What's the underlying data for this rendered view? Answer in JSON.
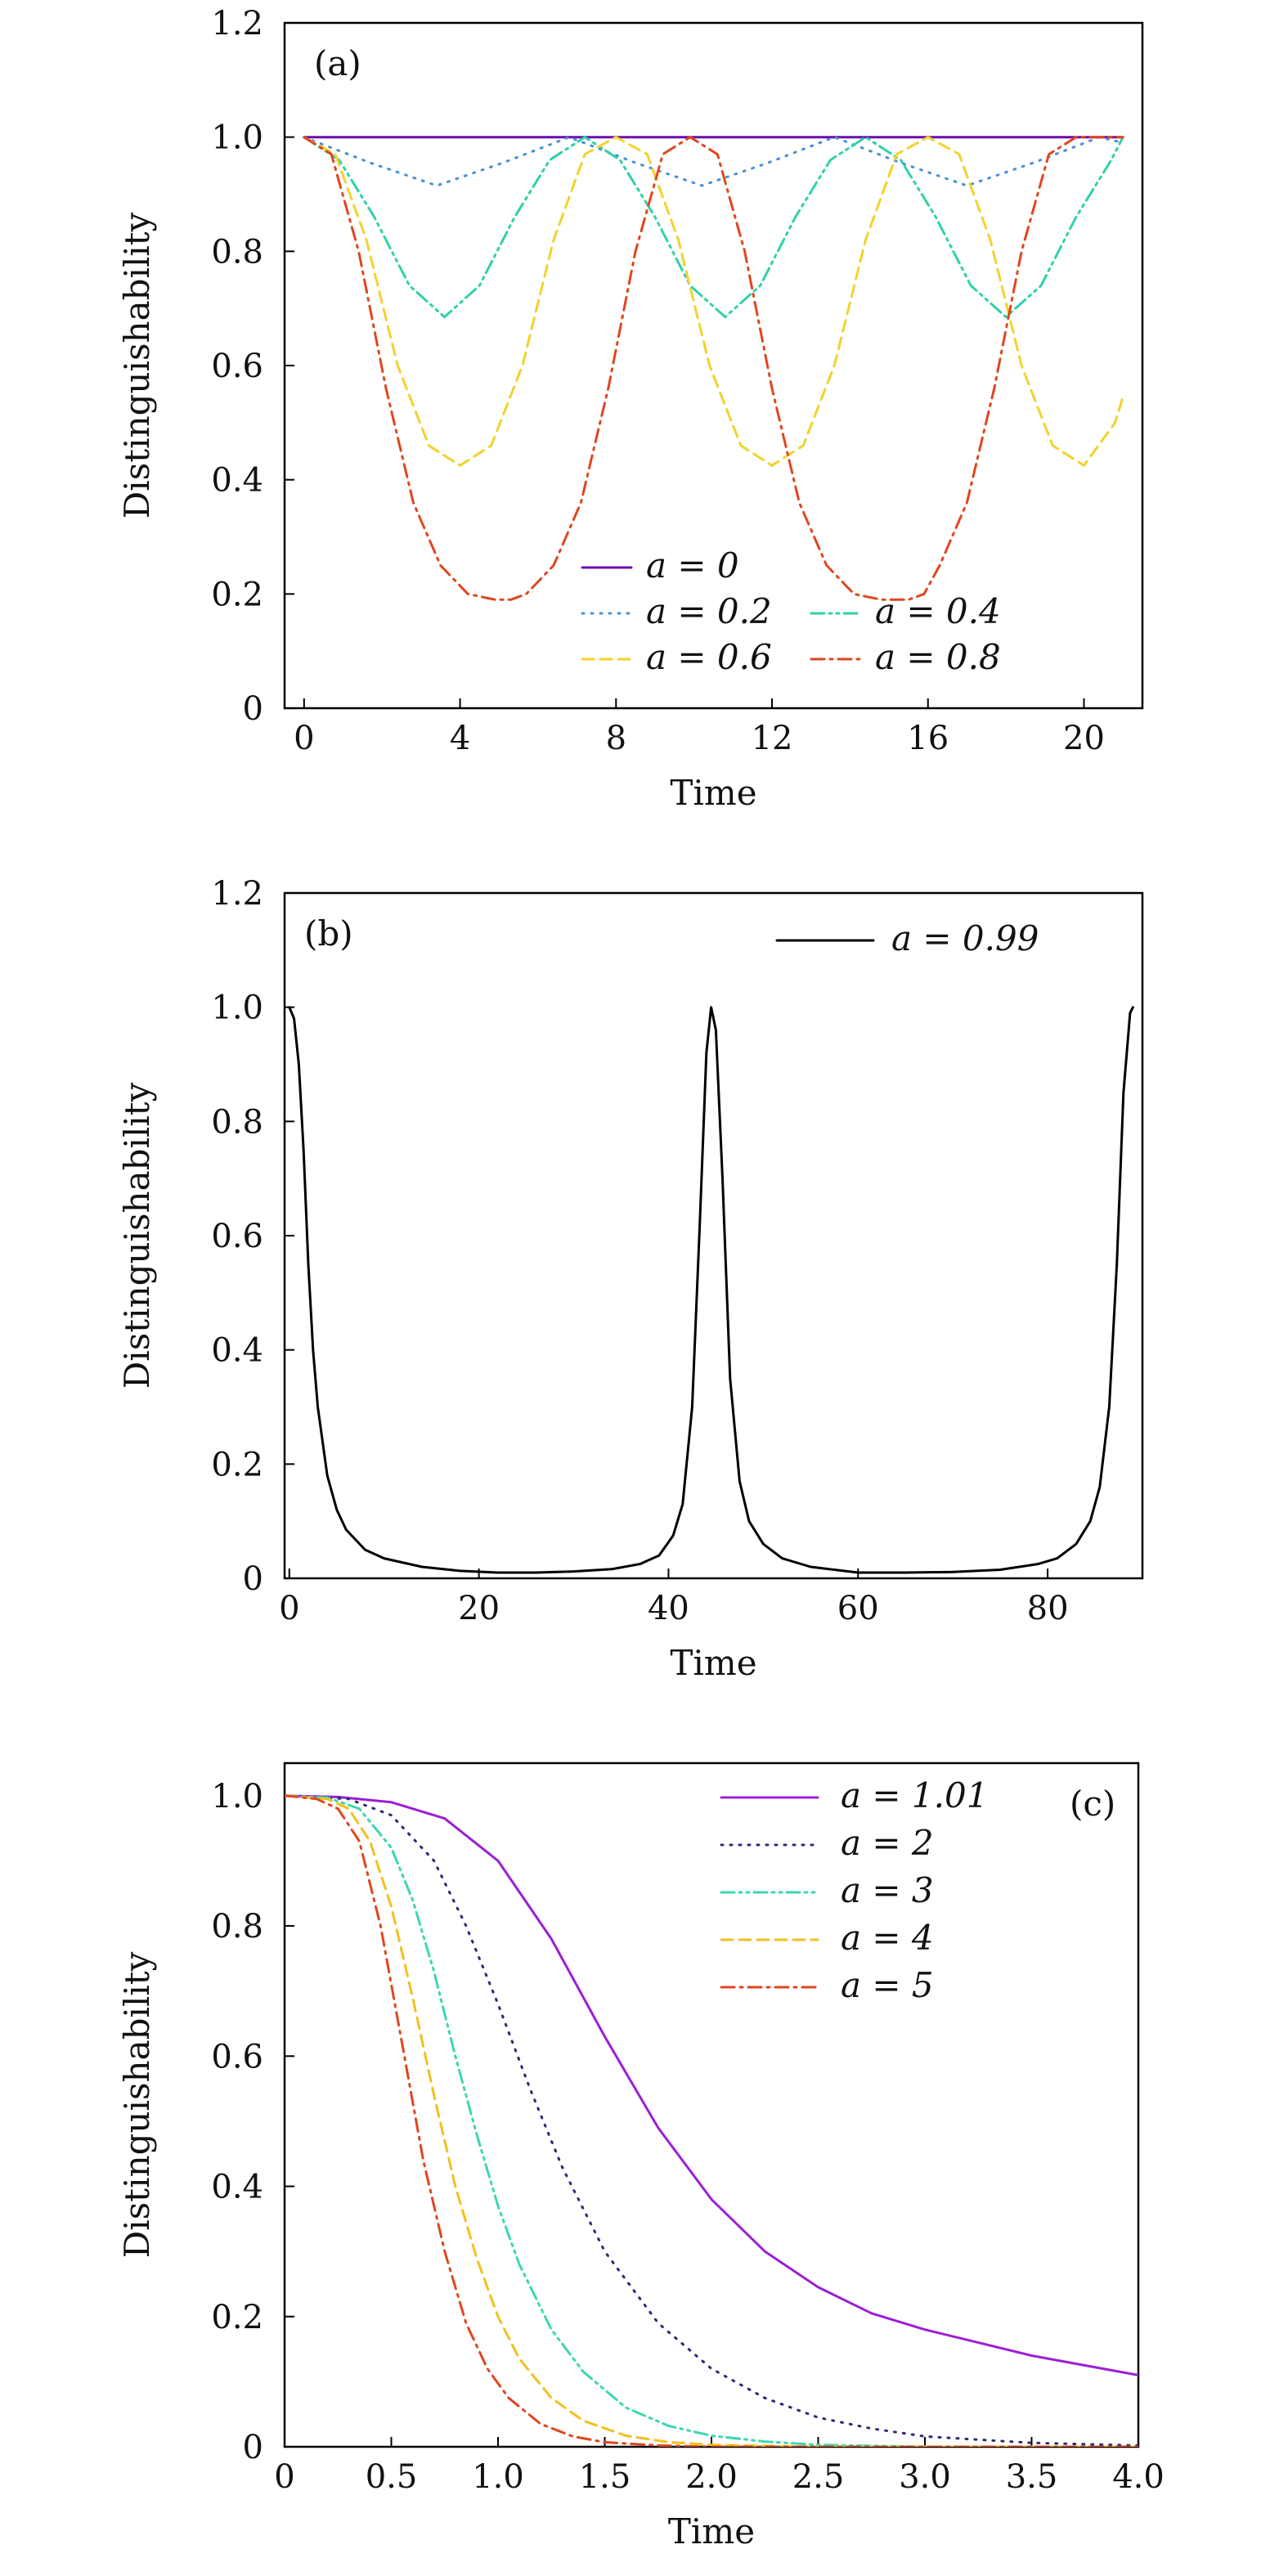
{
  "chart_data": [
    {
      "type": "line",
      "panel_tag": "(a)",
      "xlabel": "Time",
      "ylabel": "Distinguishability",
      "xlim": [
        -0.5,
        21.5
      ],
      "ylim": [
        0,
        1.2
      ],
      "xticks": [
        0,
        4,
        8,
        12,
        16,
        20
      ],
      "yticks": [
        0,
        0.2,
        0.4,
        0.6,
        0.8,
        1.0,
        1.2
      ],
      "ytick_labels": [
        "0",
        "0.2",
        "0.4",
        "0.6",
        "0.8",
        "1.0",
        "1.2"
      ],
      "legend_position": "bottom-center",
      "series": [
        {
          "name": "a = 0",
          "color": "#6a0dad",
          "dash": "solid",
          "x": [
            0,
            21
          ],
          "y": [
            1.0,
            1.0
          ]
        },
        {
          "name": "a = 0.2",
          "color": "#4a8fd6",
          "dash": "dotted",
          "x": [
            0,
            1.7,
            3.4,
            5.1,
            6.8,
            8.5,
            10.2,
            11.9,
            13.6,
            15.3,
            17.0,
            18.7,
            20.4,
            21
          ],
          "y": [
            1.0,
            0.955,
            0.915,
            0.955,
            1.0,
            0.955,
            0.915,
            0.955,
            1.0,
            0.955,
            0.915,
            0.955,
            1.0,
            0.99
          ]
        },
        {
          "name": "a = 0.4",
          "color": "#2fd1a8",
          "dash": "dashdotdot",
          "x": [
            0,
            0.9,
            1.8,
            2.7,
            3.6,
            4.5,
            5.4,
            6.3,
            7.2,
            8.1,
            9.0,
            9.9,
            10.8,
            11.7,
            12.6,
            13.5,
            14.4,
            15.3,
            16.2,
            17.1,
            18.0,
            18.9,
            19.8,
            20.7,
            21
          ],
          "y": [
            1.0,
            0.96,
            0.86,
            0.74,
            0.685,
            0.74,
            0.86,
            0.96,
            1.0,
            0.96,
            0.86,
            0.74,
            0.685,
            0.74,
            0.86,
            0.96,
            1.0,
            0.96,
            0.86,
            0.74,
            0.685,
            0.74,
            0.86,
            0.96,
            1.0
          ]
        },
        {
          "name": "a = 0.6",
          "color": "#f2d22e",
          "dash": "dashed",
          "x": [
            0,
            0.8,
            1.6,
            2.4,
            3.2,
            4.0,
            4.8,
            5.6,
            6.4,
            7.2,
            8.0,
            8.8,
            9.6,
            10.4,
            11.2,
            12.0,
            12.8,
            13.6,
            14.4,
            15.2,
            16.0,
            16.8,
            17.6,
            18.4,
            19.2,
            20.0,
            20.8,
            21
          ],
          "y": [
            1.0,
            0.97,
            0.82,
            0.6,
            0.46,
            0.425,
            0.46,
            0.6,
            0.82,
            0.97,
            1.0,
            0.97,
            0.82,
            0.6,
            0.46,
            0.425,
            0.46,
            0.6,
            0.82,
            0.97,
            1.0,
            0.97,
            0.82,
            0.6,
            0.46,
            0.425,
            0.5,
            0.545
          ]
        },
        {
          "name": "a = 0.8",
          "color": "#e0461e",
          "dash": "dashdot",
          "x": [
            0,
            0.7,
            1.4,
            2.1,
            2.8,
            3.5,
            4.2,
            4.9,
            5.3,
            5.7,
            6.4,
            7.1,
            7.8,
            8.5,
            9.2,
            9.9,
            10.6,
            11.3,
            12.0,
            12.7,
            13.4,
            14.1,
            14.8,
            15.5,
            15.9,
            16.3,
            17.0,
            17.7,
            18.4,
            19.1,
            19.8,
            20.5,
            21
          ],
          "y": [
            1.0,
            0.97,
            0.8,
            0.56,
            0.36,
            0.25,
            0.2,
            0.19,
            0.19,
            0.2,
            0.25,
            0.36,
            0.56,
            0.8,
            0.97,
            1.0,
            0.97,
            0.8,
            0.56,
            0.36,
            0.25,
            0.2,
            0.19,
            0.19,
            0.2,
            0.25,
            0.36,
            0.56,
            0.8,
            0.97,
            1.0,
            1.0,
            1.0
          ]
        }
      ]
    },
    {
      "type": "line",
      "panel_tag": "(b)",
      "xlabel": "Time",
      "ylabel": "Distinguishability",
      "xlim": [
        -0.5,
        90
      ],
      "ylim": [
        0,
        1.2
      ],
      "xticks": [
        0,
        20,
        40,
        60,
        80
      ],
      "yticks": [
        0,
        0.2,
        0.4,
        0.6,
        0.8,
        1.0,
        1.2
      ],
      "ytick_labels": [
        "0",
        "0.2",
        "0.4",
        "0.6",
        "0.8",
        "1.0",
        "1.2"
      ],
      "legend_position": "top-right",
      "series": [
        {
          "name": "a = 0.99",
          "color": "#000000",
          "dash": "solid",
          "x": [
            0,
            0.5,
            1.0,
            1.5,
            2.0,
            2.5,
            3.0,
            4.0,
            5.0,
            6.0,
            8.0,
            10.0,
            14.0,
            18.0,
            22.0,
            26.0,
            30.0,
            34.0,
            37.0,
            39.0,
            40.5,
            41.5,
            42.5,
            43.3,
            44.0,
            44.5,
            45.0,
            45.7,
            46.5,
            47.5,
            48.5,
            50.0,
            52.0,
            55.0,
            60.0,
            65.0,
            70.0,
            75.0,
            79.0,
            81.0,
            83.0,
            84.5,
            85.5,
            86.5,
            87.3,
            88.0,
            88.7,
            89.0
          ],
          "y": [
            1.0,
            0.98,
            0.9,
            0.75,
            0.55,
            0.4,
            0.3,
            0.18,
            0.12,
            0.085,
            0.05,
            0.035,
            0.02,
            0.013,
            0.01,
            0.01,
            0.012,
            0.016,
            0.025,
            0.04,
            0.075,
            0.13,
            0.3,
            0.62,
            0.92,
            1.0,
            0.96,
            0.7,
            0.35,
            0.17,
            0.1,
            0.06,
            0.035,
            0.02,
            0.01,
            0.01,
            0.011,
            0.015,
            0.025,
            0.035,
            0.06,
            0.1,
            0.16,
            0.3,
            0.55,
            0.85,
            0.99,
            1.0
          ]
        }
      ]
    },
    {
      "type": "line",
      "panel_tag": "(c)",
      "xlabel": "Time",
      "ylabel": "Distinguishability",
      "xlim": [
        0,
        4.0
      ],
      "ylim": [
        0,
        1.05
      ],
      "xticks": [
        0,
        0.5,
        1.0,
        1.5,
        2.0,
        2.5,
        3.0,
        3.5,
        4.0
      ],
      "xtick_labels": [
        "0",
        "0.5",
        "1.0",
        "1.5",
        "2.0",
        "2.5",
        "3.0",
        "3.5",
        "4.0"
      ],
      "yticks": [
        0,
        0.2,
        0.4,
        0.6,
        0.8,
        1.0
      ],
      "ytick_labels": [
        "0",
        "0.2",
        "0.4",
        "0.6",
        "0.8",
        "1.0"
      ],
      "legend_position": "top-right",
      "series": [
        {
          "name": "a = 1.01",
          "color": "#9b1fd6",
          "dash": "solid",
          "x": [
            0,
            0.25,
            0.5,
            0.75,
            1.0,
            1.25,
            1.5,
            1.75,
            2.0,
            2.25,
            2.5,
            2.75,
            3.0,
            3.25,
            3.5,
            3.75,
            4.0
          ],
          "y": [
            1.0,
            0.998,
            0.99,
            0.965,
            0.9,
            0.78,
            0.63,
            0.49,
            0.38,
            0.3,
            0.245,
            0.205,
            0.18,
            0.16,
            0.14,
            0.125,
            0.11
          ]
        },
        {
          "name": "a = 2",
          "color": "#2a2a7a",
          "dash": "dotted",
          "x": [
            0,
            0.3,
            0.5,
            0.7,
            0.85,
            1.0,
            1.15,
            1.3,
            1.5,
            1.75,
            2.0,
            2.25,
            2.5,
            2.75,
            3.0,
            3.5,
            4.0
          ],
          "y": [
            1.0,
            0.995,
            0.97,
            0.9,
            0.8,
            0.68,
            0.55,
            0.43,
            0.3,
            0.19,
            0.12,
            0.075,
            0.045,
            0.028,
            0.016,
            0.006,
            0.002
          ]
        },
        {
          "name": "a = 3",
          "color": "#3cd6b4",
          "dash": "dashdotdot",
          "x": [
            0,
            0.2,
            0.35,
            0.5,
            0.6,
            0.7,
            0.8,
            0.9,
            1.0,
            1.1,
            1.25,
            1.4,
            1.6,
            1.8,
            2.0,
            2.25,
            2.5,
            3.0,
            4.0
          ],
          "y": [
            1.0,
            0.997,
            0.98,
            0.92,
            0.84,
            0.73,
            0.6,
            0.48,
            0.37,
            0.28,
            0.18,
            0.115,
            0.06,
            0.032,
            0.017,
            0.008,
            0.003,
            0.0,
            0.0
          ]
        },
        {
          "name": "a = 4",
          "color": "#f2c01e",
          "dash": "dashed",
          "x": [
            0,
            0.2,
            0.3,
            0.4,
            0.5,
            0.6,
            0.7,
            0.8,
            0.9,
            1.0,
            1.1,
            1.25,
            1.4,
            1.6,
            1.8,
            2.0,
            2.5,
            4.0
          ],
          "y": [
            1.0,
            0.995,
            0.98,
            0.93,
            0.83,
            0.69,
            0.54,
            0.4,
            0.29,
            0.2,
            0.135,
            0.075,
            0.04,
            0.017,
            0.007,
            0.003,
            0.0,
            0.0
          ]
        },
        {
          "name": "a = 5",
          "color": "#e0461e",
          "dash": "dashdot",
          "x": [
            0,
            0.15,
            0.25,
            0.35,
            0.45,
            0.55,
            0.65,
            0.75,
            0.85,
            0.95,
            1.05,
            1.2,
            1.35,
            1.5,
            1.75,
            2.0,
            4.0
          ],
          "y": [
            1.0,
            0.995,
            0.98,
            0.93,
            0.8,
            0.62,
            0.44,
            0.3,
            0.19,
            0.12,
            0.075,
            0.035,
            0.016,
            0.007,
            0.002,
            0.0,
            0.0
          ]
        }
      ]
    }
  ]
}
